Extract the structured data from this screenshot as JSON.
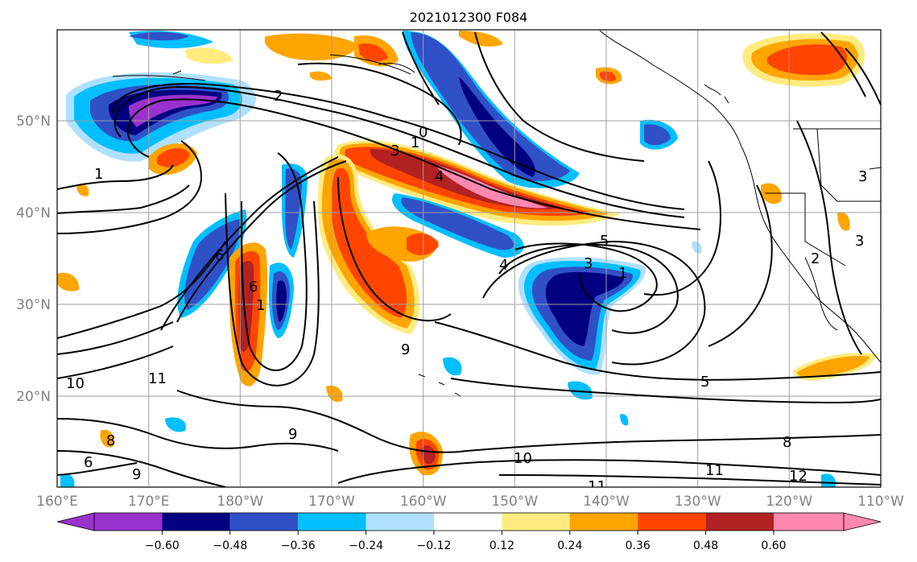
{
  "title": "2021012300 F084",
  "lon_ticks": [
    "160°E",
    "170°E",
    "180°W",
    "170°W",
    "160°W",
    "150°W",
    "140°W",
    "130°W",
    "120°W",
    "110°W"
  ],
  "lat_ticks": [
    "50°N",
    "40°N",
    "30°N",
    "20°N"
  ],
  "colorbar": {
    "ticks": [
      "−0.60",
      "−0.48",
      "−0.36",
      "−0.24",
      "−0.12",
      "0.12",
      "0.24",
      "0.36",
      "0.48",
      "0.60"
    ],
    "colors": [
      "#9932cc",
      "#000080",
      "#3050c8",
      "#00bfff",
      "#b0e0ff",
      "#ffffff",
      "#ffeb80",
      "#ffa500",
      "#ff4500",
      "#b22222",
      "#ff88b0"
    ]
  },
  "contour_labels": [
    {
      "text": "2"
    },
    {
      "text": "1"
    },
    {
      "text": "0"
    },
    {
      "text": "1"
    },
    {
      "text": "3"
    },
    {
      "text": "4"
    },
    {
      "text": "6"
    },
    {
      "text": "6"
    },
    {
      "text": "5"
    },
    {
      "text": "4"
    },
    {
      "text": "3"
    },
    {
      "text": "1"
    },
    {
      "text": "2"
    },
    {
      "text": "3"
    },
    {
      "text": "3"
    },
    {
      "text": "1"
    },
    {
      "text": "9"
    },
    {
      "text": "10"
    },
    {
      "text": "11"
    },
    {
      "text": "9"
    },
    {
      "text": "9"
    },
    {
      "text": "5"
    },
    {
      "text": "8"
    },
    {
      "text": "10"
    },
    {
      "text": "11"
    },
    {
      "text": "12"
    },
    {
      "text": "11"
    },
    {
      "text": "6"
    },
    {
      "text": "8"
    }
  ]
}
